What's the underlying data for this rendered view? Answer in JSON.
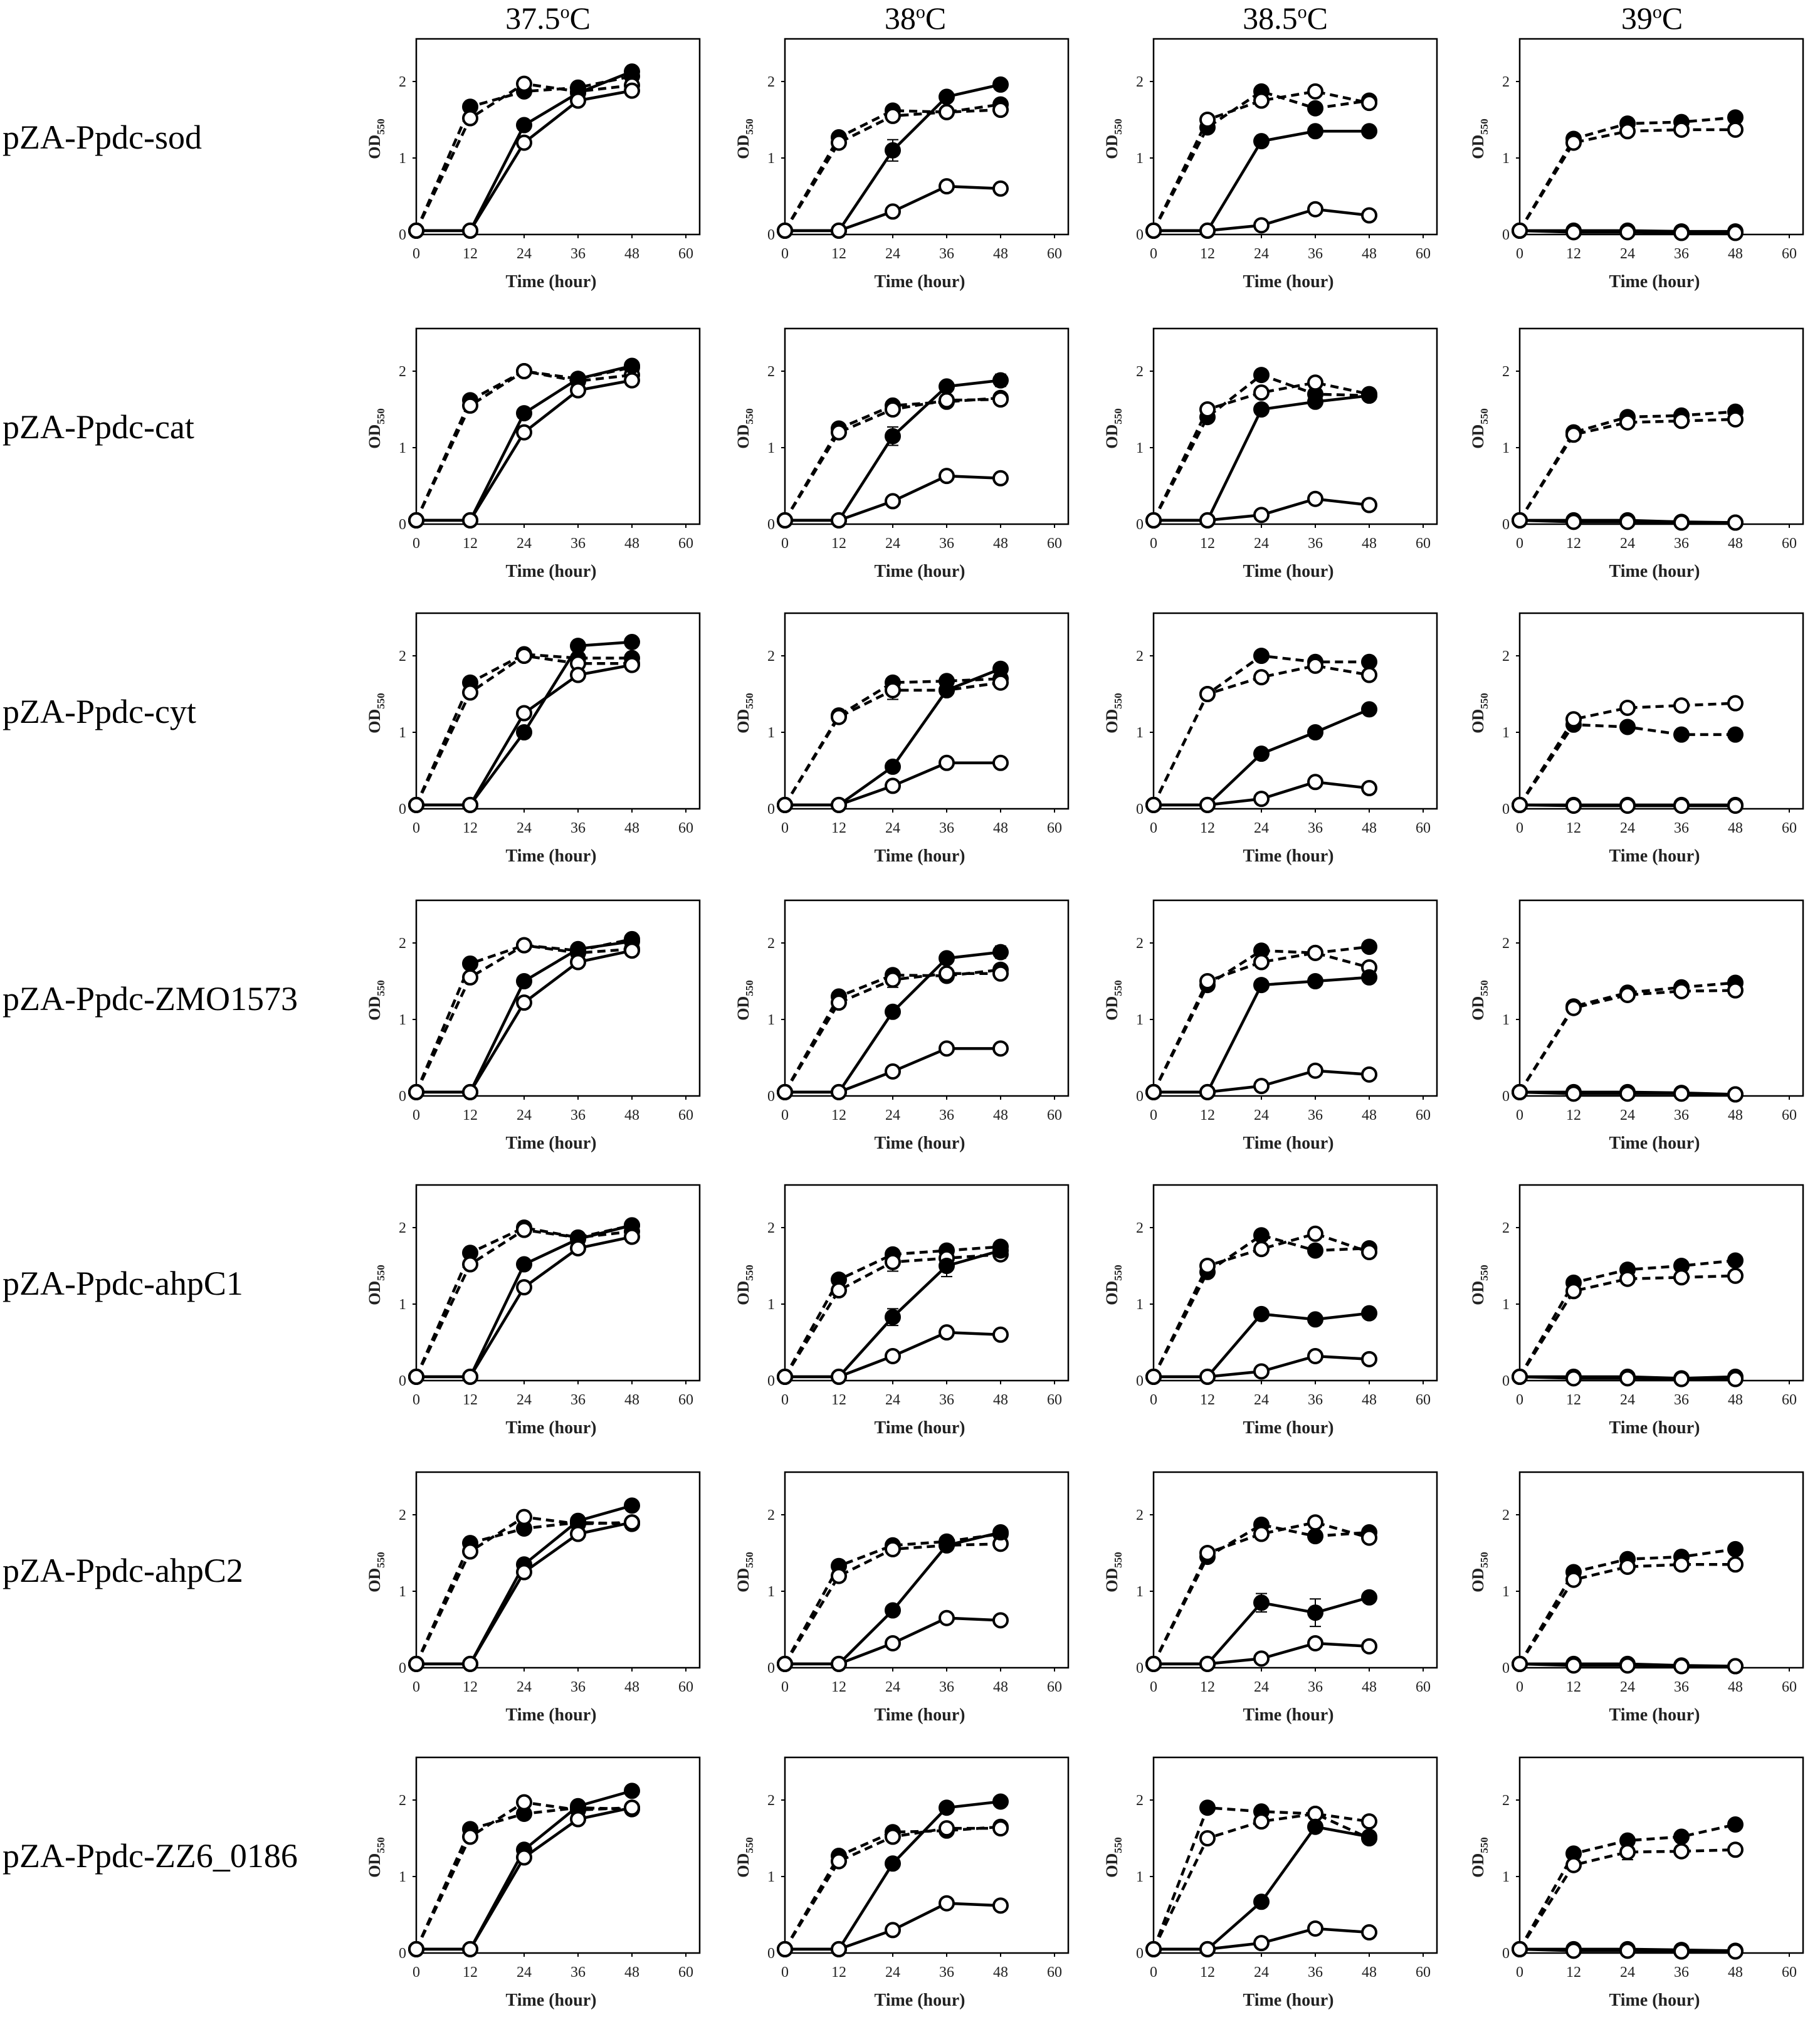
{
  "figure": {
    "temperatures": [
      {
        "value": "37.5",
        "sup": "o",
        "unit": "C"
      },
      {
        "value": "38",
        "sup": "o",
        "unit": "C"
      },
      {
        "value": "38.5",
        "sup": "o",
        "unit": "C"
      },
      {
        "value": "39",
        "sup": "o",
        "unit": "C"
      }
    ],
    "strains": [
      "pZA-Ppdc-sod",
      "pZA-Ppdc-cat",
      "pZA-Ppdc-cyt",
      "pZA-Ppdc-ZMO1573",
      "pZA-Ppdc-ahpC1",
      "pZA-Ppdc-ahpC2",
      "pZA-Ppdc-ZZ6_0186"
    ],
    "colors": {
      "axis": "#000000",
      "line": "#000000",
      "marker_fill": "#000000",
      "marker_open": "#ffffff"
    }
  },
  "chart_data": {
    "type": "line",
    "xlabel": "Time (hour)",
    "ylabel": "OD",
    "ylabel_sub": "550",
    "x": [
      0,
      12,
      24,
      36,
      48
    ],
    "xlim": [
      0,
      60
    ],
    "ylim": [
      0,
      2.5
    ],
    "xticks": [
      0,
      12,
      24,
      36,
      48,
      60
    ],
    "yticks": [
      0,
      1,
      2
    ],
    "series_styles": [
      {
        "marker": "filled",
        "line": "dashed"
      },
      {
        "marker": "open",
        "line": "dashed"
      },
      {
        "marker": "filled",
        "line": "solid"
      },
      {
        "marker": "open",
        "line": "solid"
      }
    ],
    "panels": [
      [
        [
          [
            0.05,
            1.67,
            1.87,
            1.92,
            2.07
          ],
          [
            0.05,
            1.52,
            1.97,
            1.87,
            1.95
          ],
          [
            0.05,
            0.05,
            1.43,
            1.85,
            2.13
          ],
          [
            0.05,
            0.05,
            1.2,
            1.75,
            1.88
          ]
        ],
        [
          [
            0.05,
            1.27,
            1.62,
            1.6,
            1.7
          ],
          [
            0.05,
            1.2,
            1.55,
            1.6,
            1.63
          ],
          [
            0.05,
            0.05,
            1.1,
            1.8,
            1.96
          ],
          [
            0.05,
            0.05,
            0.3,
            0.63,
            0.6
          ]
        ],
        [
          [
            0.05,
            1.4,
            1.87,
            1.65,
            1.75
          ],
          [
            0.05,
            1.5,
            1.75,
            1.87,
            1.72
          ],
          [
            0.05,
            0.05,
            1.22,
            1.35,
            1.35
          ],
          [
            0.05,
            0.05,
            0.12,
            0.33,
            0.25
          ]
        ],
        [
          [
            0.05,
            1.25,
            1.45,
            1.47,
            1.53
          ],
          [
            0.05,
            1.2,
            1.35,
            1.37,
            1.37
          ],
          [
            0.05,
            0.05,
            0.05,
            0.04,
            0.04
          ],
          [
            0.05,
            0.03,
            0.03,
            0.02,
            0.02
          ]
        ]
      ],
      [
        [
          [
            0.05,
            1.62,
            2.0,
            1.9,
            2.05
          ],
          [
            0.05,
            1.55,
            2.0,
            1.87,
            1.95
          ],
          [
            0.05,
            0.05,
            1.45,
            1.9,
            2.07
          ],
          [
            0.05,
            0.05,
            1.2,
            1.75,
            1.88
          ]
        ],
        [
          [
            0.05,
            1.25,
            1.55,
            1.6,
            1.65
          ],
          [
            0.05,
            1.2,
            1.5,
            1.62,
            1.63
          ],
          [
            0.05,
            0.05,
            1.15,
            1.8,
            1.88
          ],
          [
            0.05,
            0.05,
            0.3,
            0.63,
            0.6
          ]
        ],
        [
          [
            0.05,
            1.4,
            1.95,
            1.7,
            1.68
          ],
          [
            0.05,
            1.5,
            1.72,
            1.85,
            1.7
          ],
          [
            0.05,
            0.05,
            1.5,
            1.6,
            1.68
          ],
          [
            0.05,
            0.05,
            0.12,
            0.33,
            0.25
          ]
        ],
        [
          [
            0.05,
            1.2,
            1.4,
            1.42,
            1.47
          ],
          [
            0.05,
            1.17,
            1.33,
            1.35,
            1.37
          ],
          [
            0.05,
            0.05,
            0.05,
            0.03,
            0.02
          ],
          [
            0.05,
            0.03,
            0.03,
            0.02,
            0.02
          ]
        ]
      ],
      [
        [
          [
            0.05,
            1.65,
            2.02,
            1.97,
            1.97
          ],
          [
            0.05,
            1.52,
            2.0,
            1.9,
            1.9
          ],
          [
            0.05,
            0.05,
            1.0,
            2.13,
            2.18
          ],
          [
            0.05,
            0.05,
            1.25,
            1.75,
            1.88
          ]
        ],
        [
          [
            0.05,
            1.22,
            1.65,
            1.67,
            1.7
          ],
          [
            0.05,
            1.2,
            1.55,
            1.55,
            1.65
          ],
          [
            0.05,
            0.05,
            0.55,
            1.55,
            1.83
          ],
          [
            0.05,
            0.05,
            0.3,
            0.6,
            0.6
          ]
        ],
        [
          [
            0.05,
            1.5,
            2.0,
            1.92,
            1.92
          ],
          [
            0.05,
            1.5,
            1.72,
            1.87,
            1.75
          ],
          [
            0.05,
            0.05,
            0.72,
            1.0,
            1.3
          ],
          [
            0.05,
            0.05,
            0.13,
            0.35,
            0.27
          ]
        ],
        [
          [
            0.05,
            1.1,
            1.07,
            0.97,
            0.97
          ],
          [
            0.05,
            1.17,
            1.32,
            1.35,
            1.38
          ],
          [
            0.05,
            0.05,
            0.05,
            0.05,
            0.05
          ],
          [
            0.05,
            0.04,
            0.04,
            0.04,
            0.04
          ]
        ]
      ],
      [
        [
          [
            0.05,
            1.73,
            1.97,
            1.9,
            2.05
          ],
          [
            0.05,
            1.55,
            1.97,
            1.87,
            1.92
          ],
          [
            0.05,
            0.05,
            1.5,
            1.92,
            2.02
          ],
          [
            0.05,
            0.05,
            1.22,
            1.75,
            1.9
          ]
        ],
        [
          [
            0.05,
            1.3,
            1.58,
            1.57,
            1.65
          ],
          [
            0.05,
            1.22,
            1.52,
            1.6,
            1.6
          ],
          [
            0.05,
            0.05,
            1.1,
            1.8,
            1.88
          ],
          [
            0.05,
            0.05,
            0.32,
            0.62,
            0.62
          ]
        ],
        [
          [
            0.05,
            1.45,
            1.9,
            1.87,
            1.95
          ],
          [
            0.05,
            1.5,
            1.75,
            1.87,
            1.68
          ],
          [
            0.05,
            0.05,
            1.45,
            1.5,
            1.55
          ],
          [
            0.05,
            0.05,
            0.13,
            0.33,
            0.28
          ]
        ],
        [
          [
            0.05,
            1.17,
            1.35,
            1.42,
            1.48
          ],
          [
            0.05,
            1.15,
            1.32,
            1.37,
            1.38
          ],
          [
            0.05,
            0.05,
            0.05,
            0.04,
            0.02
          ],
          [
            0.05,
            0.03,
            0.03,
            0.03,
            0.02
          ]
        ]
      ],
      [
        [
          [
            0.05,
            1.67,
            2.0,
            1.87,
            2.03
          ],
          [
            0.05,
            1.52,
            1.97,
            1.87,
            1.95
          ],
          [
            0.05,
            0.05,
            1.52,
            1.85,
            2.03
          ],
          [
            0.05,
            0.05,
            1.22,
            1.73,
            1.88
          ]
        ],
        [
          [
            0.05,
            1.32,
            1.65,
            1.7,
            1.75
          ],
          [
            0.05,
            1.18,
            1.55,
            1.6,
            1.65
          ],
          [
            0.05,
            0.05,
            0.83,
            1.5,
            1.7
          ],
          [
            0.05,
            0.05,
            0.32,
            0.63,
            0.6
          ]
        ],
        [
          [
            0.05,
            1.42,
            1.9,
            1.7,
            1.73
          ],
          [
            0.05,
            1.5,
            1.72,
            1.92,
            1.68
          ],
          [
            0.05,
            0.05,
            0.87,
            0.8,
            0.88
          ],
          [
            0.05,
            0.05,
            0.12,
            0.32,
            0.28
          ]
        ],
        [
          [
            0.05,
            1.28,
            1.45,
            1.5,
            1.57
          ],
          [
            0.05,
            1.17,
            1.33,
            1.35,
            1.37
          ],
          [
            0.05,
            0.05,
            0.05,
            0.03,
            0.05
          ],
          [
            0.05,
            0.03,
            0.03,
            0.02,
            0.02
          ]
        ]
      ],
      [
        [
          [
            0.05,
            1.63,
            1.82,
            1.9,
            1.88
          ],
          [
            0.05,
            1.52,
            1.97,
            1.88,
            1.9
          ],
          [
            0.05,
            0.05,
            1.35,
            1.92,
            2.12
          ],
          [
            0.05,
            0.05,
            1.25,
            1.75,
            1.9
          ]
        ],
        [
          [
            0.05,
            1.33,
            1.6,
            1.65,
            1.75
          ],
          [
            0.05,
            1.2,
            1.55,
            1.6,
            1.62
          ],
          [
            0.05,
            0.05,
            0.75,
            1.6,
            1.77
          ],
          [
            0.05,
            0.05,
            0.32,
            0.65,
            0.62
          ]
        ],
        [
          [
            0.05,
            1.45,
            1.87,
            1.72,
            1.77
          ],
          [
            0.05,
            1.5,
            1.75,
            1.9,
            1.7
          ],
          [
            0.05,
            0.05,
            0.85,
            0.72,
            0.92
          ],
          [
            0.05,
            0.05,
            0.12,
            0.32,
            0.28
          ]
        ],
        [
          [
            0.05,
            1.25,
            1.42,
            1.45,
            1.55
          ],
          [
            0.05,
            1.15,
            1.32,
            1.35,
            1.35
          ],
          [
            0.05,
            0.05,
            0.05,
            0.03,
            0.02
          ],
          [
            0.05,
            0.03,
            0.03,
            0.02,
            0.02
          ]
        ]
      ],
      [
        [
          [
            0.05,
            1.62,
            1.82,
            1.9,
            1.88
          ],
          [
            0.05,
            1.52,
            1.97,
            1.87,
            1.9
          ],
          [
            0.05,
            0.05,
            1.35,
            1.92,
            2.12
          ],
          [
            0.05,
            0.05,
            1.25,
            1.75,
            1.9
          ]
        ],
        [
          [
            0.05,
            1.27,
            1.58,
            1.6,
            1.65
          ],
          [
            0.05,
            1.2,
            1.52,
            1.63,
            1.63
          ],
          [
            0.05,
            0.05,
            1.17,
            1.9,
            1.98
          ],
          [
            0.05,
            0.05,
            0.3,
            0.65,
            0.62
          ]
        ],
        [
          [
            0.05,
            1.9,
            1.85,
            1.82,
            1.5
          ],
          [
            0.05,
            1.5,
            1.72,
            1.82,
            1.72
          ],
          [
            0.05,
            0.05,
            0.67,
            1.65,
            1.52
          ],
          [
            0.05,
            0.05,
            0.13,
            0.32,
            0.27
          ]
        ],
        [
          [
            0.05,
            1.3,
            1.47,
            1.52,
            1.68
          ],
          [
            0.05,
            1.15,
            1.32,
            1.33,
            1.35
          ],
          [
            0.05,
            0.05,
            0.05,
            0.04,
            0.03
          ],
          [
            0.05,
            0.03,
            0.03,
            0.02,
            0.02
          ]
        ]
      ]
    ],
    "error_bars": [
      [
        [
          1,
          2,
          2,
          0.14
        ]
      ],
      [
        [
          1,
          2,
          2,
          0.12
        ],
        [
          1,
          2,
          3,
          0.06
        ],
        [
          1,
          2,
          4,
          0.08
        ],
        [
          1,
          1,
          4,
          0.06
        ]
      ],
      [
        [
          1,
          1,
          2,
          0.12
        ],
        [
          1,
          2,
          4,
          0.07
        ],
        [
          1,
          3,
          4,
          0.05
        ]
      ],
      [
        [
          1,
          1,
          2,
          0.1
        ],
        [
          1,
          2,
          4,
          0.08
        ],
        [
          1,
          3,
          4,
          0.06
        ]
      ],
      [
        [
          1,
          2,
          2,
          0.11
        ],
        [
          1,
          2,
          3,
          0.14
        ],
        [
          1,
          1,
          2,
          0.12
        ],
        [
          1,
          2,
          4,
          0.06
        ]
      ],
      [
        [
          2,
          2,
          2,
          0.12
        ],
        [
          2,
          2,
          3,
          0.18
        ],
        [
          2,
          2,
          4,
          0.06
        ],
        [
          2,
          3,
          4,
          0.06
        ]
      ],
      [
        [
          3,
          1,
          2,
          0.1
        ],
        [
          3,
          2,
          4,
          0.06
        ],
        [
          3,
          3,
          4,
          0.06
        ]
      ]
    ]
  }
}
